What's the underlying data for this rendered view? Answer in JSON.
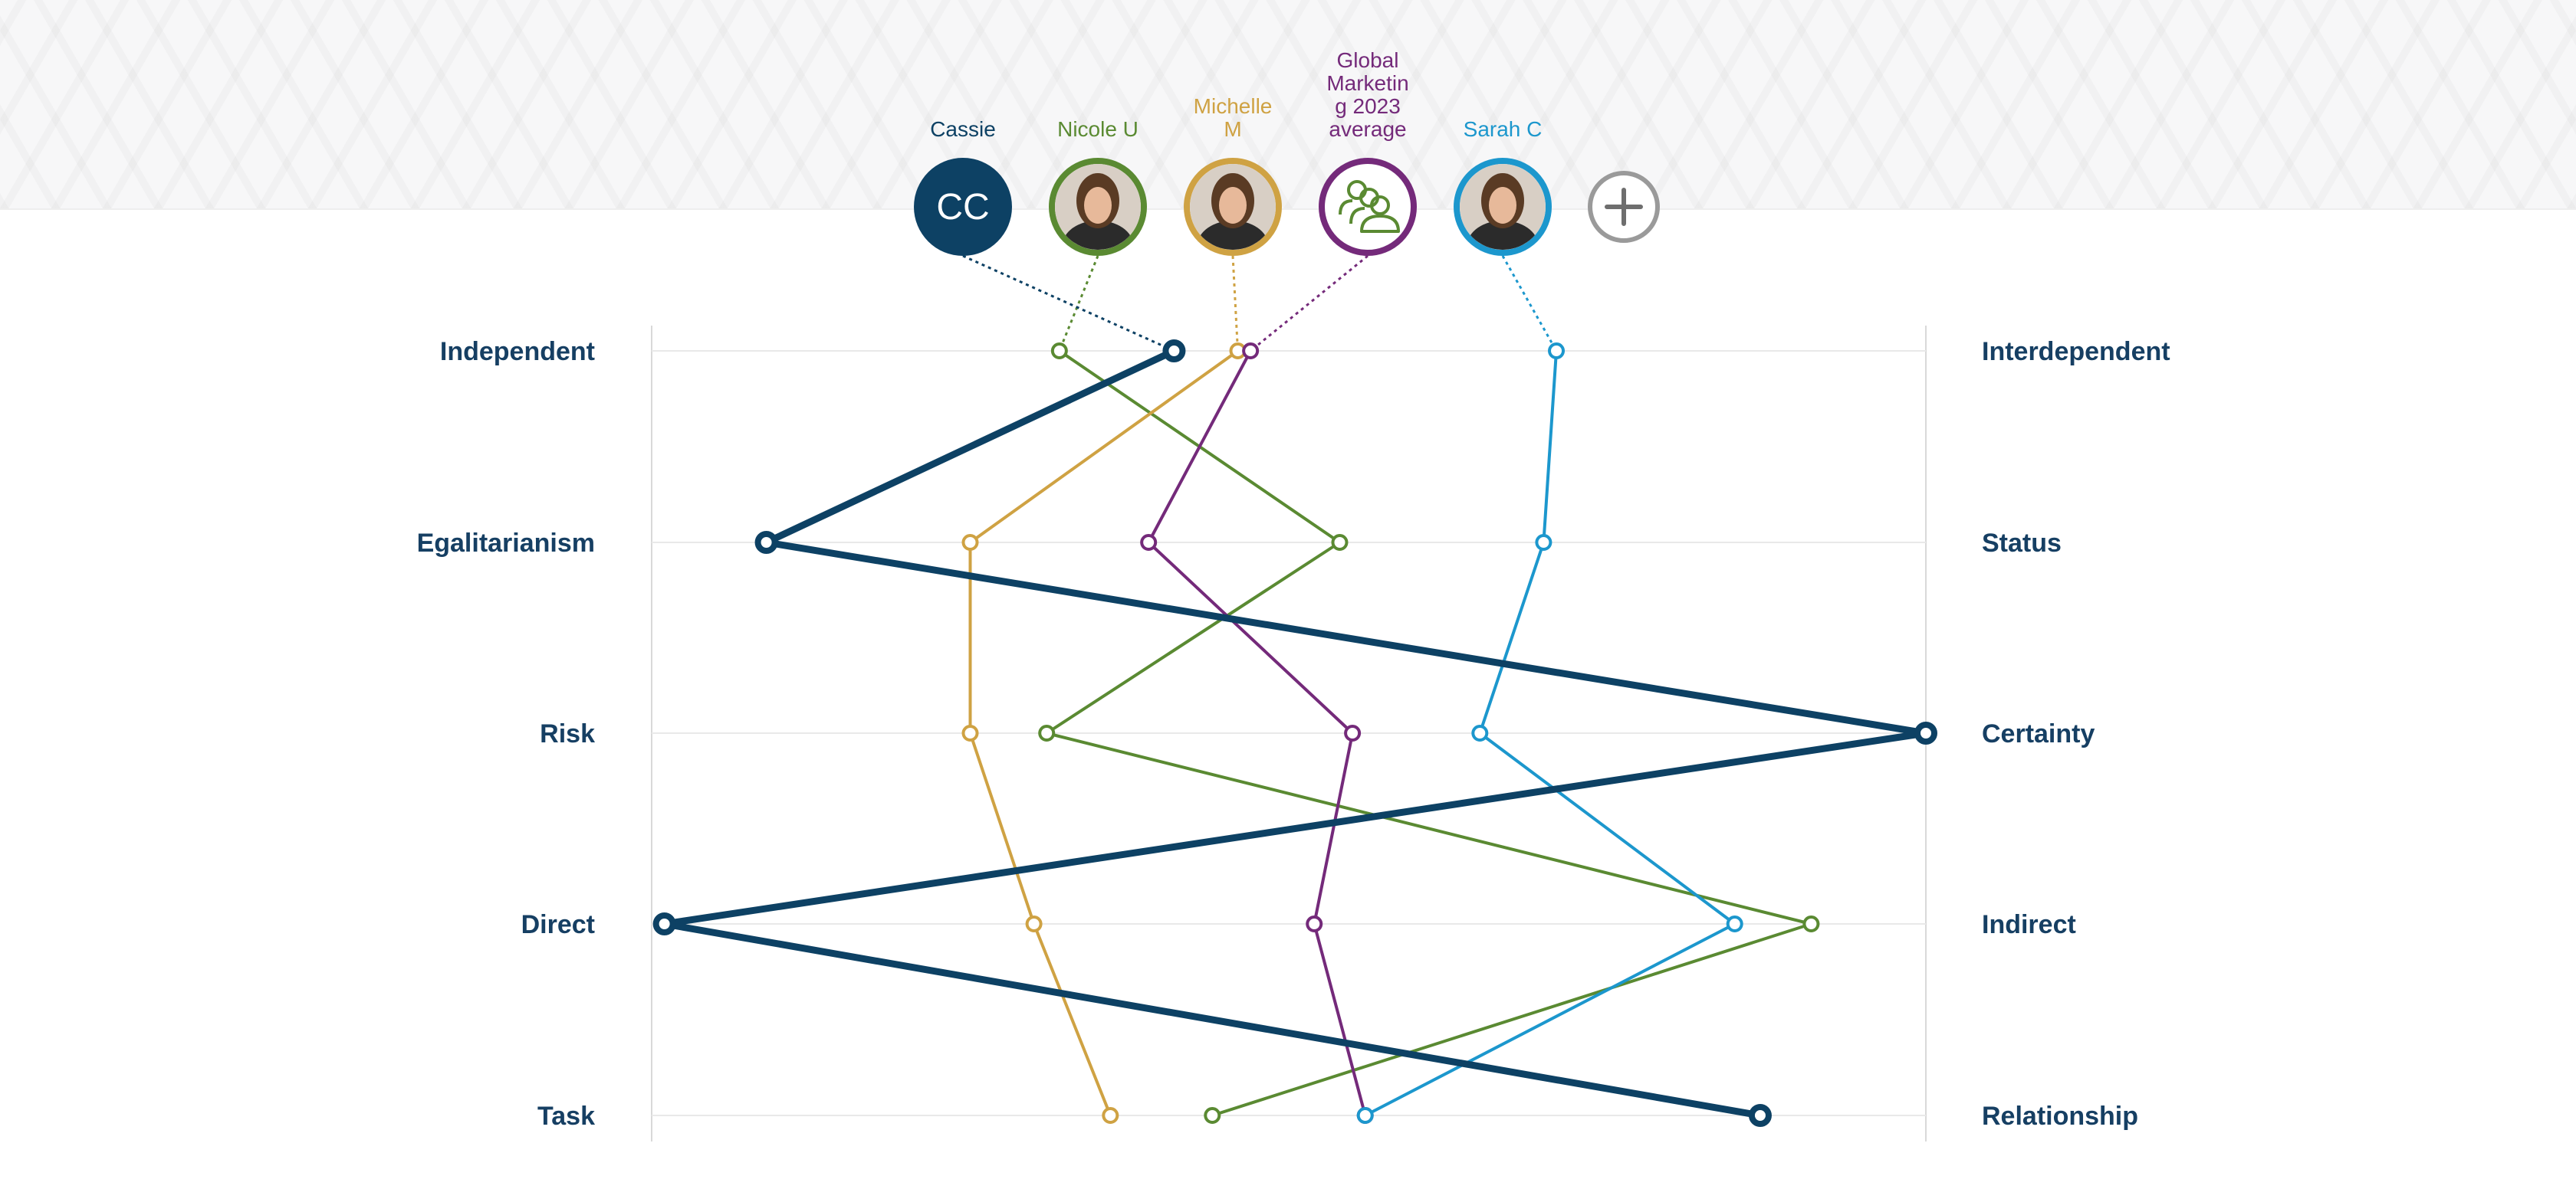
{
  "chart_data": {
    "type": "line",
    "orientation": "horizontal-profile",
    "categories": [
      "Independent",
      "Egalitarianism",
      "Risk",
      "Direct",
      "Task"
    ],
    "left_labels": [
      "Independent",
      "Egalitarianism",
      "Risk",
      "Direct",
      "Task"
    ],
    "right_labels": [
      "Interdependent",
      "Status",
      "Certainty",
      "Indirect",
      "Relationship"
    ],
    "xlim": [
      0,
      100
    ],
    "grid": true,
    "series": [
      {
        "name": "Nicole U",
        "color": "#5a8a32",
        "values": [
          32,
          54,
          31,
          91,
          44
        ]
      },
      {
        "name": "Michelle M",
        "color": "#cfa243",
        "values": [
          46,
          25,
          25,
          30,
          36
        ]
      },
      {
        "name": "Global Marketing 2023 average",
        "color": "#742a7a",
        "values": [
          47,
          39,
          55,
          52,
          56
        ]
      },
      {
        "name": "Sarah C",
        "color": "#1c97cd",
        "values": [
          71,
          70,
          65,
          85,
          56
        ]
      },
      {
        "name": "Cassie",
        "color": "#0d4164",
        "values": [
          41,
          9,
          100,
          1,
          87
        ],
        "emphasis": true
      }
    ]
  },
  "people": [
    {
      "name_lines": [
        "Cassie"
      ],
      "initials": "CC",
      "avatar": "initials-avatar",
      "color": "#0d4164"
    },
    {
      "name_lines": [
        "Nicole U"
      ],
      "avatar": "photo-avatar",
      "color": "#5a8a32"
    },
    {
      "name_lines": [
        "Michelle",
        "M"
      ],
      "avatar": "photo-avatar",
      "color": "#cfa243"
    },
    {
      "name_lines": [
        "Global",
        "Marketin",
        "g 2023",
        "average"
      ],
      "avatar": "group-icon",
      "color": "#742a7a"
    },
    {
      "name_lines": [
        "Sarah C"
      ],
      "avatar": "photo-avatar",
      "color": "#1c97cd"
    }
  ],
  "add_button": {
    "icon": "plus-icon",
    "color": "#9a9a9a"
  }
}
